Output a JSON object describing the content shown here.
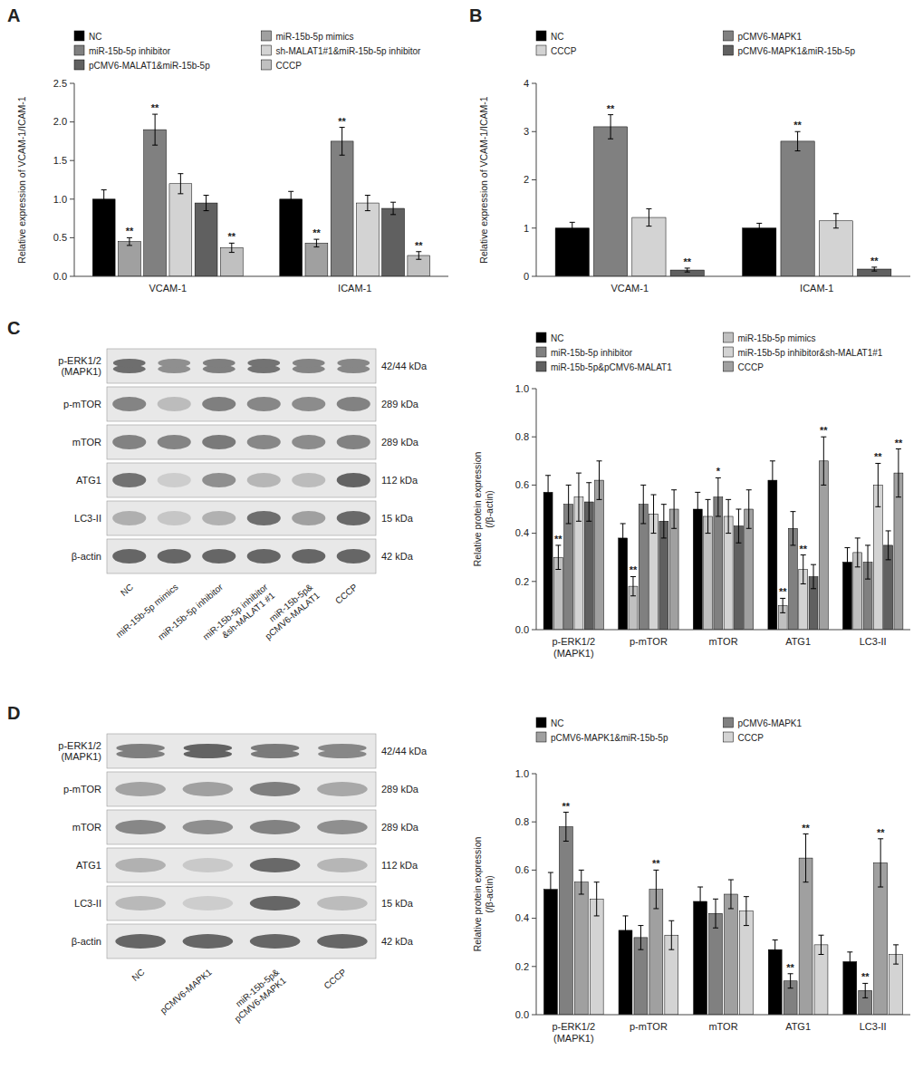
{
  "chart_data": [
    {
      "type": "bar",
      "panel_label": "A",
      "ylabel": "Relative expression of VCAM-1/ICAM-1",
      "categories": [
        "VCAM-1",
        "ICAM-1"
      ],
      "ylim": [
        0.0,
        2.5
      ],
      "yticks": [
        {
          "value": 0,
          "label": "0.0"
        },
        0.5,
        {
          "value": 1,
          "label": "1.0"
        },
        1.5,
        {
          "value": 2,
          "label": "2.0"
        },
        2.5
      ],
      "grid": false,
      "series": [
        {
          "name": "NC",
          "color": "#000000",
          "values": [
            1.0,
            1.0
          ],
          "errors": [
            0.12,
            0.1
          ],
          "significance": [
            null,
            null
          ]
        },
        {
          "name": "miR-15b-5p mimics",
          "color": "#a0a0a0",
          "values": [
            0.45,
            0.43
          ],
          "errors": [
            0.05,
            0.05
          ],
          "significance": [
            "**",
            "**"
          ]
        },
        {
          "name": "miR-15b-5p inhibitor",
          "color": "#808080",
          "values": [
            1.9,
            1.75
          ],
          "errors": [
            0.2,
            0.18
          ],
          "significance": [
            "**",
            "**"
          ]
        },
        {
          "name": "sh-MALAT1#1&miR-15b-5p inhibitor",
          "color": "#d3d3d3",
          "values": [
            1.2,
            0.95
          ],
          "errors": [
            0.13,
            0.1
          ],
          "significance": [
            null,
            null
          ]
        },
        {
          "name": "pCMV6-MALAT1&miR-15b-5p",
          "color": "#606060",
          "values": [
            0.95,
            0.88
          ],
          "errors": [
            0.1,
            0.08
          ],
          "significance": [
            null,
            null
          ]
        },
        {
          "name": "CCCP",
          "color": "#c0c0c0",
          "values": [
            0.37,
            0.27
          ],
          "errors": [
            0.06,
            0.05
          ],
          "significance": [
            "**",
            "**"
          ]
        }
      ]
    },
    {
      "type": "bar",
      "panel_label": "B",
      "ylabel": "Relative expression of VCAM-1/ICAM-1",
      "categories": [
        "VCAM-1",
        "ICAM-1"
      ],
      "ylim": [
        0.0,
        4.0
      ],
      "yticks": [
        0,
        1,
        2,
        3,
        4
      ],
      "grid": false,
      "series": [
        {
          "name": "NC",
          "color": "#000000",
          "values": [
            1.0,
            1.0
          ],
          "errors": [
            0.12,
            0.1
          ],
          "significance": [
            null,
            null
          ]
        },
        {
          "name": "pCMV6-MAPK1",
          "color": "#808080",
          "values": [
            3.1,
            2.8
          ],
          "errors": [
            0.25,
            0.2
          ],
          "significance": [
            "**",
            "**"
          ]
        },
        {
          "name": "CCCP",
          "color": "#d3d3d3",
          "values": [
            1.22,
            1.15
          ],
          "errors": [
            0.18,
            0.15
          ],
          "significance": [
            null,
            null
          ]
        },
        {
          "name": "pCMV6-MAPK1&miR-15b-5p",
          "color": "#606060",
          "values": [
            0.13,
            0.15
          ],
          "errors": [
            0.04,
            0.04
          ],
          "significance": [
            "**",
            "**"
          ]
        }
      ]
    },
    {
      "type": "blot",
      "panel_label": "C",
      "row_labels": [
        "p-ERK1/2\n(MAPK1)",
        "p-mTOR",
        "mTOR",
        "ATG1",
        "LC3-II",
        "β-actin"
      ],
      "kda_labels": [
        "42/44 kDa",
        "289 kDa",
        "289 kDa",
        "112 kDa",
        "15 kDa",
        "42 kDa"
      ],
      "col_labels": [
        "NC",
        "miR-15b-5p mimics",
        "miR-15b-5p inhibitor",
        "miR-15b-5p inhibitor\n&sh-MALAT1 #1",
        "miR-15b-5p&\npCMV6-MALAT1",
        "CCCP"
      ],
      "cells": [
        [
          0.75,
          0.55,
          0.65,
          0.72,
          0.62,
          0.6
        ],
        [
          0.62,
          0.28,
          0.65,
          0.6,
          0.57,
          0.63
        ],
        [
          0.63,
          0.62,
          0.68,
          0.6,
          0.57,
          0.63
        ],
        [
          0.73,
          0.18,
          0.55,
          0.32,
          0.28,
          0.82
        ],
        [
          0.36,
          0.22,
          0.35,
          0.75,
          0.45,
          0.78
        ],
        [
          0.8,
          0.8,
          0.8,
          0.8,
          0.8,
          0.8
        ]
      ],
      "double_bands": [
        true,
        false,
        false,
        false,
        false,
        false
      ]
    },
    {
      "type": "bar",
      "ylabel": "Relative protein expression\n(/β-actin)",
      "categories": [
        "p-ERK1/2\n(MAPK1)",
        "p-mTOR",
        "mTOR",
        "ATG1",
        "LC3-II"
      ],
      "ylim": [
        0.0,
        1.0
      ],
      "yticks": [
        {
          "value": 0,
          "label": "0.0"
        },
        0.2,
        0.4,
        0.6,
        0.8,
        {
          "value": 1,
          "label": "1.0"
        }
      ],
      "grid": false,
      "series": [
        {
          "name": "NC",
          "color": "#000000",
          "values": [
            0.57,
            0.38,
            0.5,
            0.62,
            0.28
          ],
          "errors": [
            0.07,
            0.06,
            0.07,
            0.08,
            0.06
          ],
          "significance": [
            null,
            null,
            null,
            null,
            null
          ]
        },
        {
          "name": "miR-15b-5p mimics",
          "color": "#c0c0c0",
          "values": [
            0.3,
            0.18,
            0.47,
            0.1,
            0.32
          ],
          "errors": [
            0.05,
            0.04,
            0.07,
            0.03,
            0.06
          ],
          "significance": [
            "**",
            "**",
            null,
            "**",
            null
          ]
        },
        {
          "name": "miR-15b-5p inhibitor",
          "color": "#808080",
          "values": [
            0.52,
            0.52,
            0.55,
            0.42,
            0.28
          ],
          "errors": [
            0.08,
            0.08,
            0.08,
            0.07,
            0.07
          ],
          "significance": [
            null,
            null,
            "*",
            null,
            null
          ]
        },
        {
          "name": "miR-15b-5p inhibitor&sh-MALAT1#1",
          "color": "#d3d3d3",
          "values": [
            0.55,
            0.48,
            0.47,
            0.25,
            0.6
          ],
          "errors": [
            0.1,
            0.08,
            0.07,
            0.06,
            0.09
          ],
          "significance": [
            null,
            null,
            null,
            "**",
            "**"
          ]
        },
        {
          "name": "miR-15b-5p&pCMV6-MALAT1",
          "color": "#606060",
          "values": [
            0.53,
            0.45,
            0.43,
            0.22,
            0.35
          ],
          "errors": [
            0.08,
            0.07,
            0.07,
            0.05,
            0.06
          ],
          "significance": [
            null,
            null,
            null,
            null,
            null
          ]
        },
        {
          "name": "CCCP",
          "color": "#a0a0a0",
          "values": [
            0.62,
            0.5,
            0.5,
            0.7,
            0.65
          ],
          "errors": [
            0.08,
            0.08,
            0.08,
            0.1,
            0.1
          ],
          "significance": [
            null,
            null,
            null,
            "**",
            "**"
          ]
        }
      ]
    },
    {
      "type": "blot",
      "panel_label": "D",
      "row_labels": [
        "p-ERK1/2\n(MAPK1)",
        "p-mTOR",
        "mTOR",
        "ATG1",
        "LC3-II",
        "β-actin"
      ],
      "kda_labels": [
        "42/44 kDa",
        "289 kDa",
        "289 kDa",
        "112 kDa",
        "15 kDa",
        "42 kDa"
      ],
      "col_labels": [
        "NC",
        "pCMV6-MAPK1",
        "miR-15b-5p&\npCMV6-MAPK1",
        "CCCP"
      ],
      "cells": [
        [
          0.65,
          0.82,
          0.68,
          0.6
        ],
        [
          0.43,
          0.45,
          0.65,
          0.4
        ],
        [
          0.6,
          0.55,
          0.63,
          0.55
        ],
        [
          0.35,
          0.2,
          0.78,
          0.32
        ],
        [
          0.3,
          0.18,
          0.8,
          0.28
        ],
        [
          0.8,
          0.8,
          0.8,
          0.8
        ]
      ],
      "double_bands": [
        true,
        false,
        false,
        false,
        false,
        false
      ]
    },
    {
      "type": "bar",
      "ylabel": "Relative protein expression\n(/β-actin)",
      "categories": [
        "p-ERK1/2\n(MAPK1)",
        "p-mTOR",
        "mTOR",
        "ATG1",
        "LC3-II"
      ],
      "ylim": [
        0.0,
        1.0
      ],
      "yticks": [
        {
          "value": 0,
          "label": "0.0"
        },
        0.2,
        0.4,
        0.6,
        0.8,
        {
          "value": 1,
          "label": "1.0"
        }
      ],
      "grid": false,
      "series": [
        {
          "name": "NC",
          "color": "#000000",
          "values": [
            0.52,
            0.35,
            0.47,
            0.27,
            0.22
          ],
          "errors": [
            0.07,
            0.06,
            0.06,
            0.04,
            0.04
          ],
          "significance": [
            null,
            null,
            null,
            null,
            null
          ]
        },
        {
          "name": "pCMV6-MAPK1",
          "color": "#808080",
          "values": [
            0.78,
            0.32,
            0.42,
            0.14,
            0.1
          ],
          "errors": [
            0.06,
            0.05,
            0.06,
            0.03,
            0.03
          ],
          "significance": [
            "**",
            null,
            null,
            "**",
            "**"
          ]
        },
        {
          "name": "pCMV6-MAPK1&miR-15b-5p",
          "color": "#a0a0a0",
          "values": [
            0.55,
            0.52,
            0.5,
            0.65,
            0.63
          ],
          "errors": [
            0.05,
            0.08,
            0.06,
            0.1,
            0.1
          ],
          "significance": [
            null,
            "**",
            null,
            "**",
            "**"
          ]
        },
        {
          "name": "CCCP",
          "color": "#d3d3d3",
          "values": [
            0.48,
            0.33,
            0.43,
            0.29,
            0.25
          ],
          "errors": [
            0.07,
            0.06,
            0.06,
            0.04,
            0.04
          ],
          "significance": [
            null,
            null,
            null,
            null,
            null
          ]
        }
      ]
    }
  ]
}
